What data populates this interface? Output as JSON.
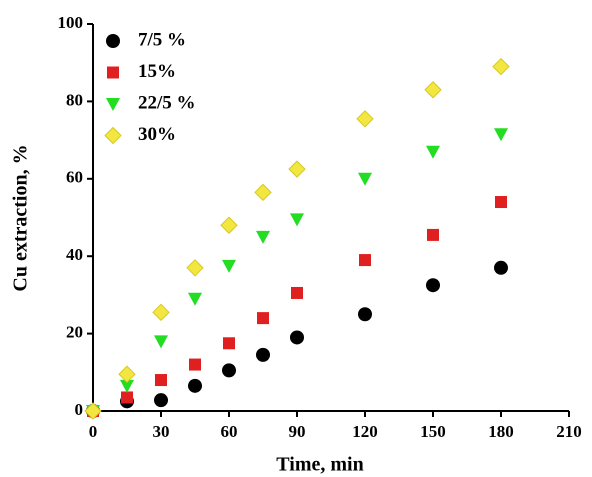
{
  "chart_data": {
    "type": "scatter",
    "x_label": "Time, min",
    "y_label": "Cu extraction, %",
    "x": [
      0,
      15,
      30,
      45,
      60,
      75,
      90,
      120,
      150,
      180
    ],
    "series": [
      {
        "name": "7/5 %",
        "color": "#000000",
        "marker": "circle",
        "values": [
          0,
          2.5,
          2.8,
          6.5,
          10.5,
          14.5,
          19,
          25,
          32.5,
          37
        ]
      },
      {
        "name": "15%",
        "color": "#e02020",
        "marker": "square",
        "values": [
          0,
          3.5,
          8,
          12,
          17.5,
          24,
          30.5,
          39,
          45.5,
          54
        ]
      },
      {
        "name": "22/5 %",
        "color": "#22dd22",
        "marker": "triangle-down",
        "values": [
          0,
          6.5,
          18,
          29,
          37.5,
          45,
          49.5,
          60,
          67,
          71.5
        ]
      },
      {
        "name": "30%",
        "color": "#f2e640",
        "marker": "diamond",
        "values": [
          0,
          9.5,
          25.5,
          37,
          48,
          56.5,
          62.5,
          75.5,
          83,
          89
        ]
      }
    ],
    "xlim": [
      0,
      210
    ],
    "xticks": [
      0,
      30,
      60,
      90,
      120,
      150,
      180,
      210
    ],
    "ylim": [
      0,
      100
    ],
    "yticks": [
      0,
      20,
      40,
      60,
      80,
      100
    ],
    "legend": "upper-left"
  }
}
